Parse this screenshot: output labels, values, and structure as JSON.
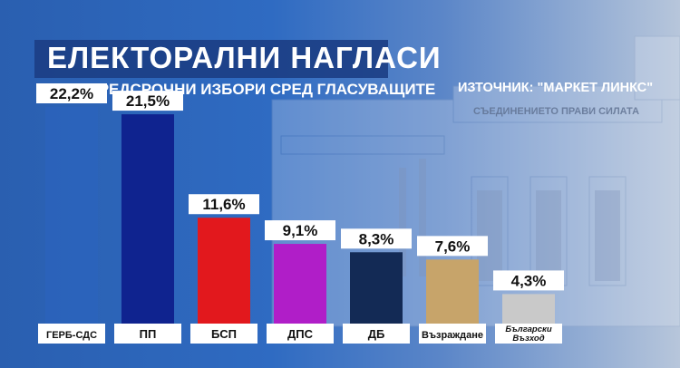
{
  "title": "ЕЛЕКТОРАЛНИ НАГЛАСИ",
  "subtitle": "ПРИ ПРЕДСРОЧНИ ИЗБОРИ СРЕД ГЛАСУВАЩИТЕ",
  "source": "ИЗТОЧНИК: \"МАРКЕТ ЛИНКС\"",
  "background_inscription": "СЪЕДИНЕНИЕТО ПРАВИ СИЛАТА",
  "chart_data": {
    "type": "bar",
    "title": "ЕЛЕКТОРАЛНИ НАГЛАСИ",
    "subtitle": "ПРИ ПРЕДСРОЧНИ ИЗБОРИ СРЕД ГЛАСУВАЩИТЕ",
    "categories": [
      "ГЕРБ-СДС",
      "ПП",
      "БСП",
      "ДПС",
      "ДБ",
      "Възраждане",
      "Български Възход"
    ],
    "category_labels": [
      [
        "ГЕРБ-СДС"
      ],
      [
        "ПП"
      ],
      [
        "БСП"
      ],
      [
        "ДПС"
      ],
      [
        "ДБ"
      ],
      [
        "Възраждане"
      ],
      [
        "Български",
        "Възход"
      ]
    ],
    "values": [
      22.2,
      21.5,
      11.6,
      9.1,
      8.3,
      7.6,
      4.3
    ],
    "value_labels": [
      "22,2%",
      "21,5%",
      "11,6%",
      "9,1%",
      "8,3%",
      "7,6%",
      "4,3%"
    ],
    "colors": [
      "#2c65c0",
      "#0f238f",
      "#e2181d",
      "#b01ec8",
      "#132a55",
      "#c7a46a",
      "#c9c9c9"
    ],
    "ylim": [
      0,
      22.2
    ],
    "xlabel": "",
    "ylabel": "",
    "grid": false,
    "legend": "none"
  }
}
